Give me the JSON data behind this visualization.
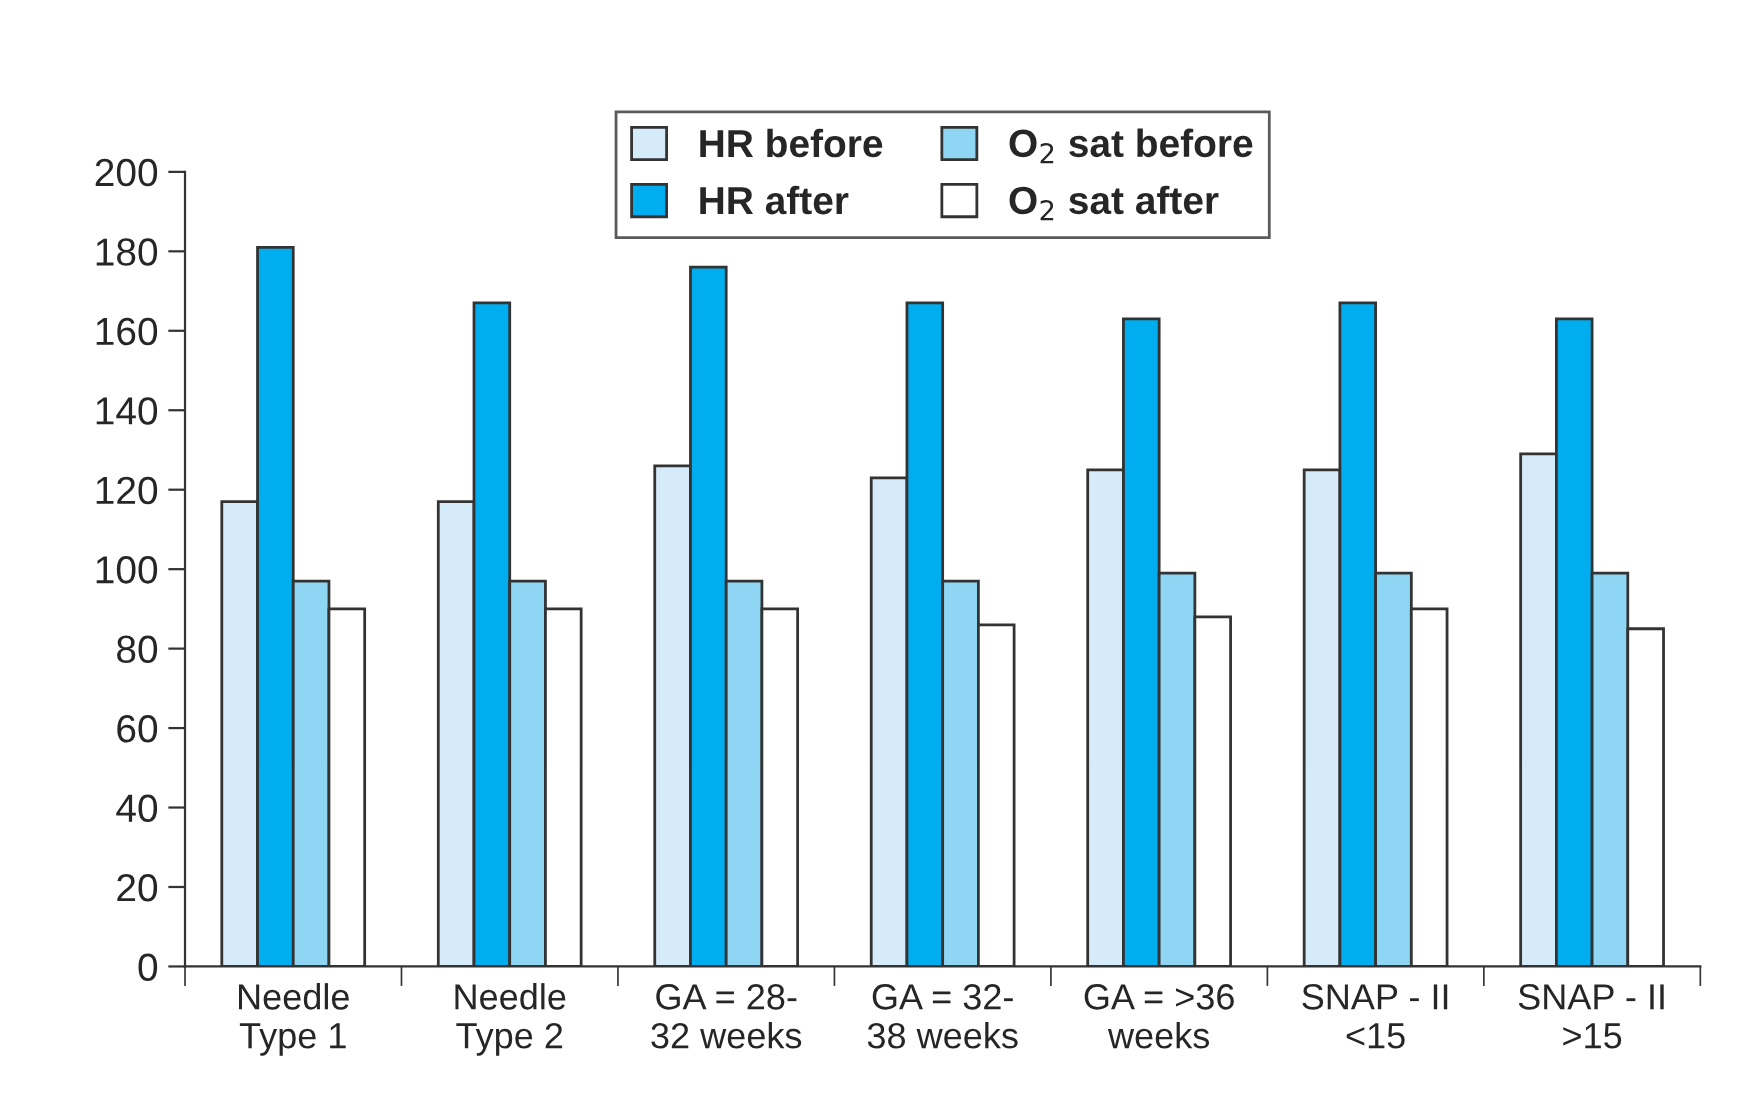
{
  "chart_data": {
    "type": "bar",
    "categories": [
      "Needle\nType 1",
      "Needle\nType 2",
      "GA = 28-\n32 weeks",
      "GA = 32-\n38 weeks",
      "GA = >36\nweeks",
      "SNAP - II\n<15",
      "SNAP - II\n>15"
    ],
    "series": [
      {
        "name": "HR before",
        "color": "#d5ebf9",
        "values": [
          117,
          117,
          126,
          123,
          125,
          125,
          129
        ]
      },
      {
        "name": "HR after",
        "color": "#00aeef",
        "values": [
          181,
          167,
          176,
          167,
          163,
          167,
          163
        ]
      },
      {
        "name": "O$_{2}$ sat before",
        "color": "#8fd6f5",
        "values": [
          97,
          97,
          97,
          97,
          99,
          99,
          99
        ]
      },
      {
        "name": "O$_{2}$ sat after",
        "color": "#ffffff",
        "values": [
          90,
          90,
          90,
          86,
          88,
          90,
          85
        ]
      }
    ],
    "ylim": [
      0,
      200
    ],
    "yticks": [
      0,
      20,
      40,
      60,
      80,
      100,
      120,
      140,
      160,
      180,
      200
    ],
    "grid": false,
    "legend": "top"
  }
}
